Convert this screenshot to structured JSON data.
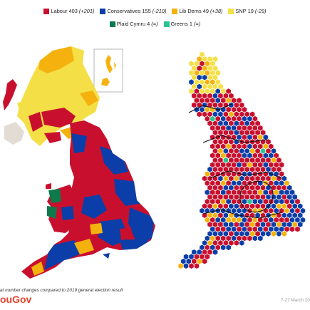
{
  "legend": [
    {
      "name": "Labour",
      "seats": "403",
      "change": "(+201)",
      "color": "#c8102e"
    },
    {
      "name": "Conservatives",
      "seats": "155",
      "change": "(-210)",
      "color": "#0b3ea8"
    },
    {
      "name": "Lib Dems",
      "seats": "49",
      "change": "(+38)",
      "color": "#f5b20e"
    },
    {
      "name": "SNP",
      "seats": "19",
      "change": "(-29)",
      "color": "#f4df46"
    },
    {
      "name": "Plaid Cymru",
      "seats": "4",
      "change": "(=)",
      "color": "#0e7a4c"
    },
    {
      "name": "Greens",
      "seats": "1",
      "change": "(=)",
      "color": "#2bc48e"
    }
  ],
  "footnote": "at number changes compared to 2019 general election result",
  "brand": "ouGov",
  "date": "7-27 March 20",
  "colors": {
    "labour": "#c8102e",
    "conservatives": "#0b3ea8",
    "libdems": "#f5b20e",
    "snp": "#f4df46",
    "plaid": "#0e7a4c",
    "greens": "#2bc48e"
  }
}
